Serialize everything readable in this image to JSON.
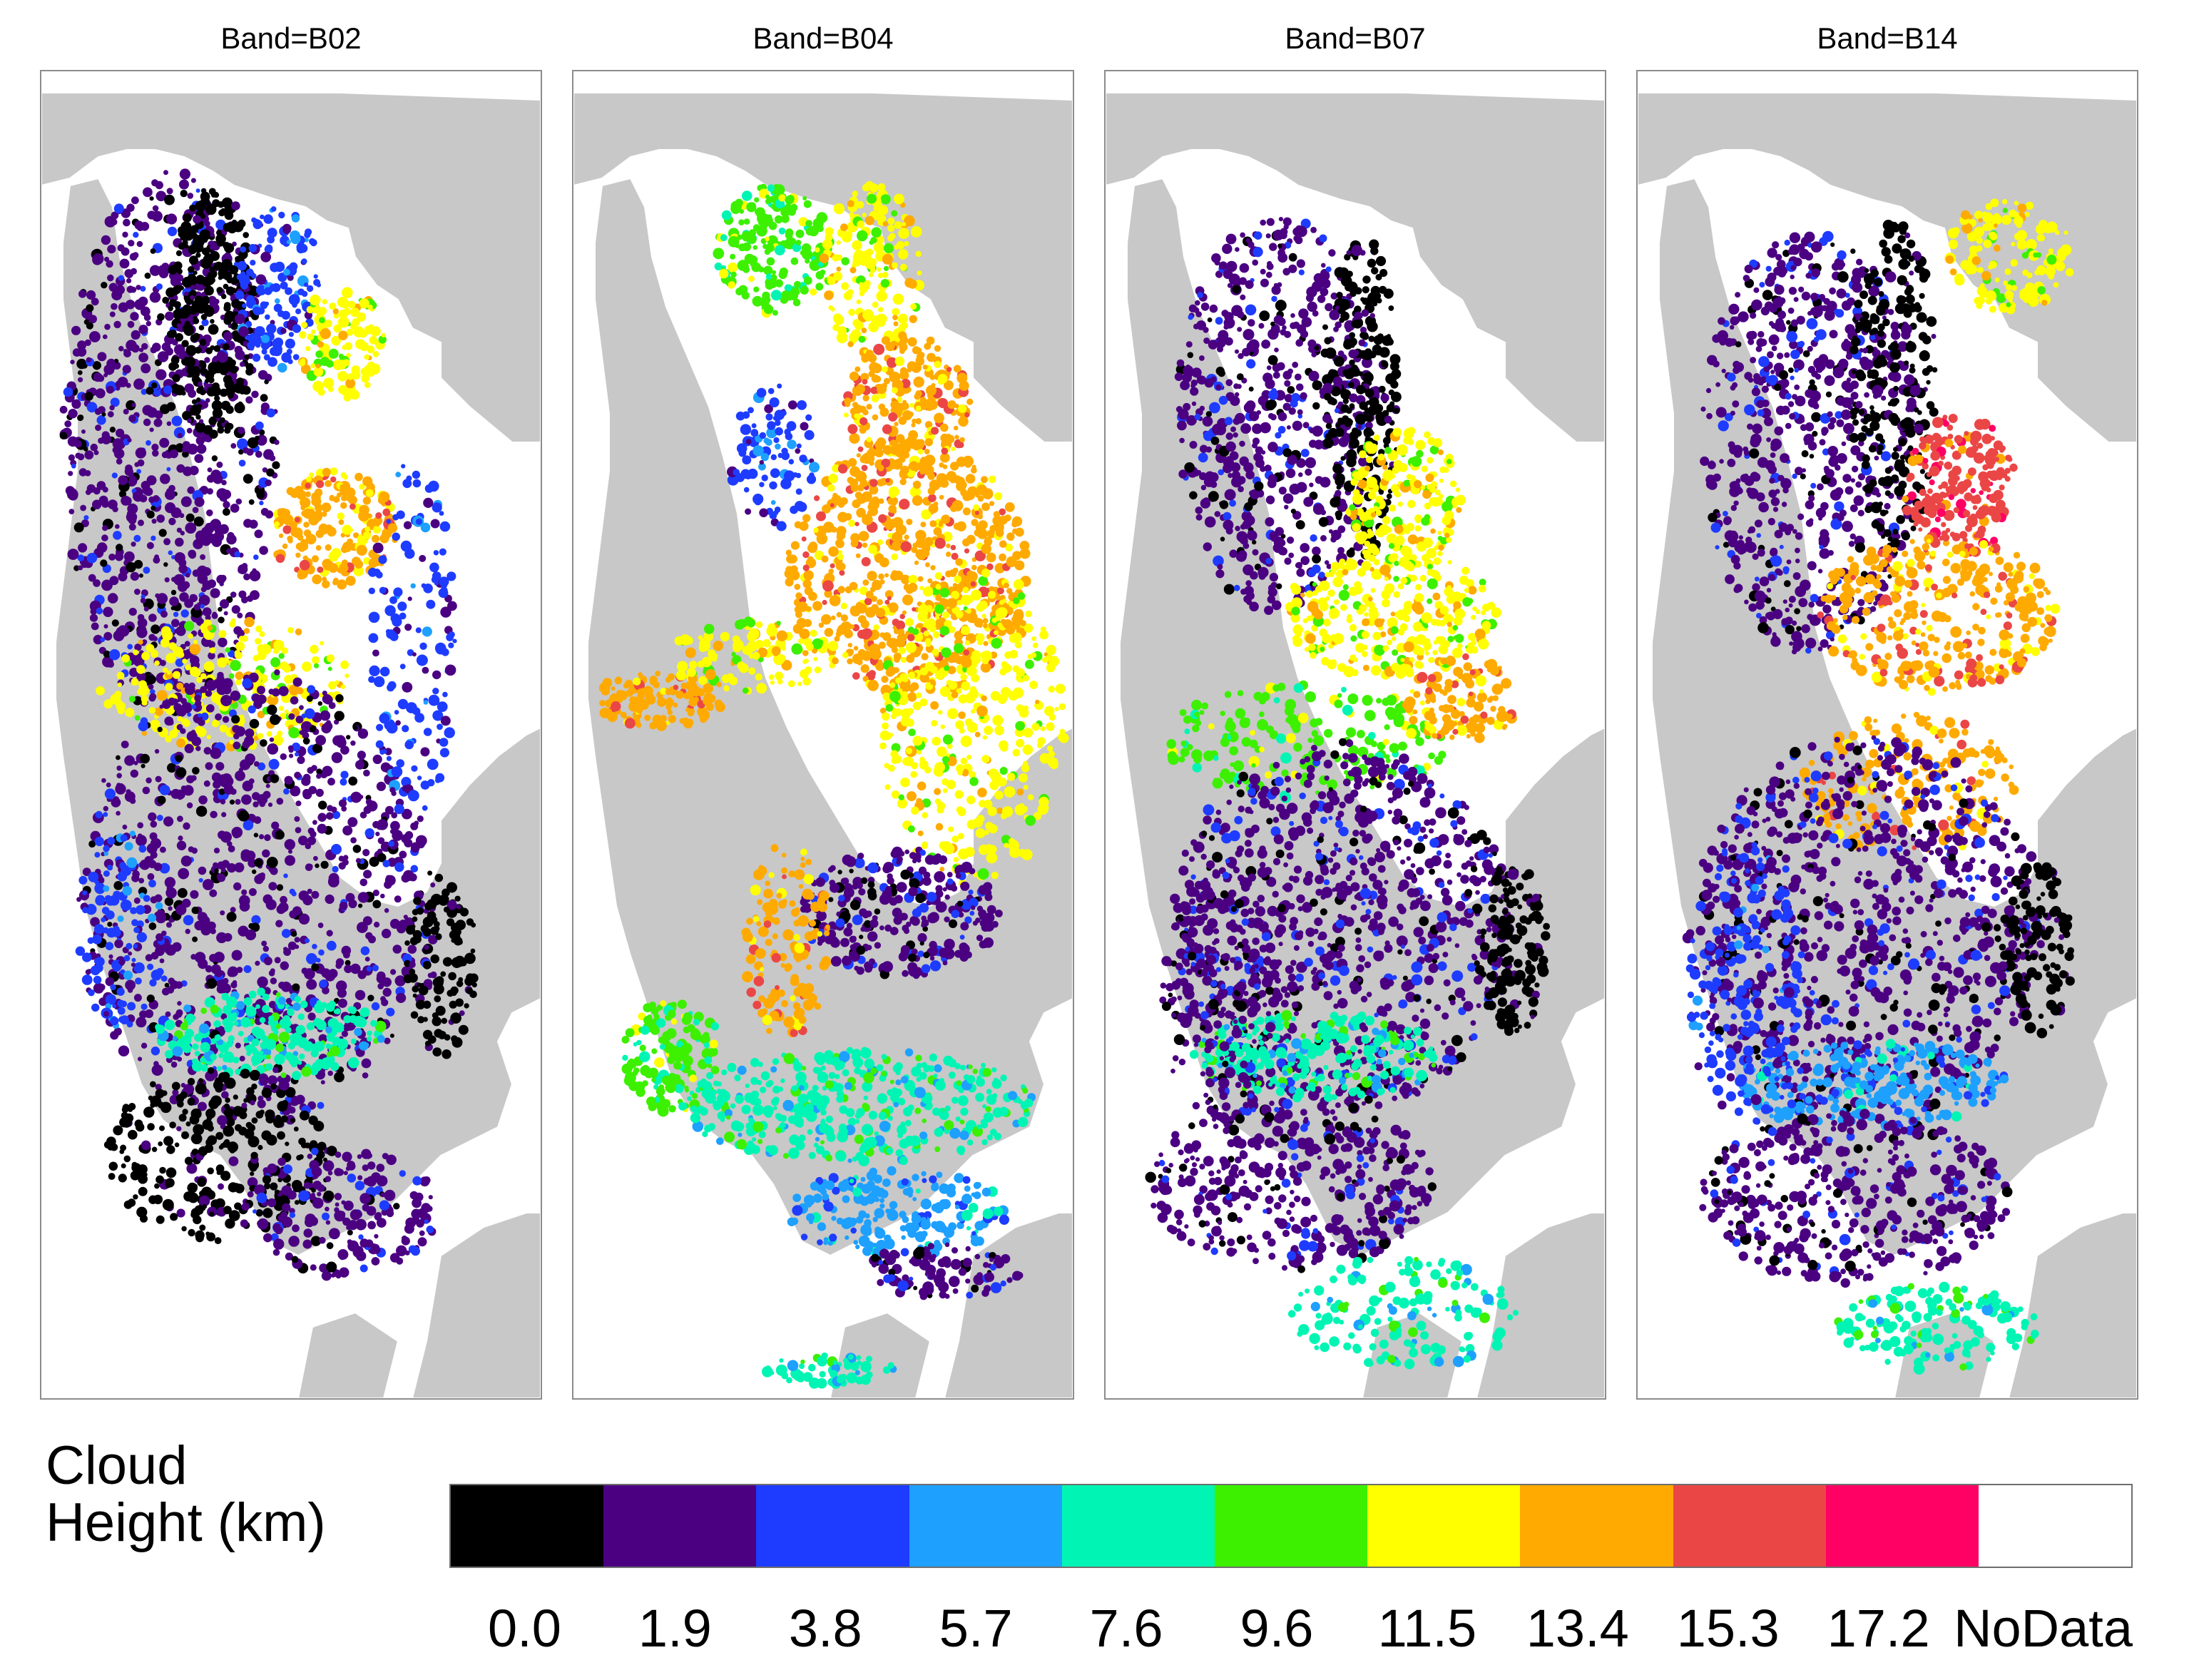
{
  "panels": [
    {
      "title": "Band=B02"
    },
    {
      "title": "Band=B04"
    },
    {
      "title": "Band=B07"
    },
    {
      "title": "Band=B14"
    }
  ],
  "colors": {
    "land": "#c8c8c8",
    "panel_border": "#8c8c8c"
  },
  "legend": {
    "title_line1": "Cloud",
    "title_line2": "Height (km)",
    "bins": [
      {
        "label": "0.0",
        "color": "#000000"
      },
      {
        "label": "1.9",
        "color": "#4b0082"
      },
      {
        "label": "3.8",
        "color": "#1e3cff"
      },
      {
        "label": "5.7",
        "color": "#1ea0ff"
      },
      {
        "label": "7.6",
        "color": "#00f5b4"
      },
      {
        "label": "9.6",
        "color": "#3cf000"
      },
      {
        "label": "11.5",
        "color": "#ffff00"
      },
      {
        "label": "13.4",
        "color": "#ffaa00"
      },
      {
        "label": "15.3",
        "color": "#eb4646"
      },
      {
        "label": "17.2",
        "color": "#ff0064"
      },
      {
        "label": "NoData",
        "color": "#ffffff"
      }
    ]
  }
}
